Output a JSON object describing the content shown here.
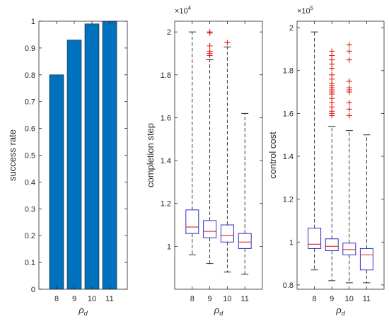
{
  "colors": {
    "bar": "#0072BD",
    "box": "#2D2DC8",
    "median": "#E0201B",
    "outlier": "#E0201B",
    "whisker": "#262626",
    "axis": "#262626"
  },
  "chart_data": [
    {
      "type": "bar",
      "categories": [
        "8",
        "9",
        "10",
        "11"
      ],
      "values": [
        0.8,
        0.93,
        0.99,
        1.0
      ],
      "xlabel": "ρ_d",
      "xlabel_main": "ρ",
      "xlabel_sub": "d",
      "ylabel": "success rate",
      "ylim": [
        0,
        1
      ],
      "yticks": [
        0,
        0.1,
        0.2,
        0.3,
        0.4,
        0.5,
        0.6,
        0.7,
        0.8,
        0.9,
        1
      ],
      "ytick_labels": [
        "0",
        "0.1",
        "0.2",
        "0.3",
        "0.4",
        "0.5",
        "0.6",
        "0.7",
        "0.8",
        "0.9",
        "1"
      ]
    },
    {
      "type": "box",
      "categories": [
        "8",
        "9",
        "10",
        "11"
      ],
      "xlabel": "ρ_d",
      "xlabel_main": "ρ",
      "xlabel_sub": "d",
      "ylabel": "completion step",
      "exponent_label": "×10",
      "exponent_power": "4",
      "ylim": [
        0.8,
        2.05
      ],
      "yticks": [
        1,
        1.2,
        1.4,
        1.6,
        1.8,
        2
      ],
      "ytick_labels": [
        "1",
        "1.2",
        "1.4",
        "1.6",
        "1.8",
        "2"
      ],
      "boxes": [
        {
          "whisker_low": 0.96,
          "q1": 1.06,
          "median": 1.09,
          "q3": 1.17,
          "whisker_high": 2.0,
          "outliers": []
        },
        {
          "whisker_low": 0.92,
          "q1": 1.04,
          "median": 1.07,
          "q3": 1.12,
          "whisker_high": 1.87,
          "outliers": [
            1.89,
            1.9,
            1.91,
            1.935,
            1.995,
            2.0
          ]
        },
        {
          "whisker_low": 0.88,
          "q1": 1.02,
          "median": 1.05,
          "q3": 1.1,
          "whisker_high": 1.93,
          "outliers": [
            1.95
          ]
        },
        {
          "whisker_low": 0.87,
          "q1": 0.99,
          "median": 1.02,
          "q3": 1.06,
          "whisker_high": 1.62,
          "outliers": []
        }
      ]
    },
    {
      "type": "box",
      "categories": [
        "8",
        "9",
        "10",
        "11"
      ],
      "xlabel": "ρ_d",
      "xlabel_main": "ρ",
      "xlabel_sub": "d",
      "ylabel": "control cost",
      "exponent_label": "×10",
      "exponent_power": "5",
      "ylim": [
        0.78,
        2.03
      ],
      "yticks": [
        0.8,
        1,
        1.2,
        1.4,
        1.6,
        1.8,
        2
      ],
      "ytick_labels": [
        "0.8",
        "1",
        "1.2",
        "1.4",
        "1.6",
        "1.8",
        "2"
      ],
      "boxes": [
        {
          "whisker_low": 0.87,
          "q1": 0.97,
          "median": 0.99,
          "q3": 1.065,
          "whisker_high": 1.98,
          "outliers": []
        },
        {
          "whisker_low": 0.82,
          "q1": 0.96,
          "median": 0.98,
          "q3": 1.015,
          "whisker_high": 1.54,
          "outliers": [
            1.59,
            1.6,
            1.61,
            1.63,
            1.65,
            1.67,
            1.69,
            1.7,
            1.71,
            1.72,
            1.73,
            1.74,
            1.76,
            1.78,
            1.81,
            1.83,
            1.85,
            1.87,
            1.89
          ]
        },
        {
          "whisker_low": 0.81,
          "q1": 0.94,
          "median": 0.965,
          "q3": 0.995,
          "whisker_high": 1.52,
          "outliers": [
            1.59,
            1.62,
            1.65,
            1.7,
            1.71,
            1.72,
            1.75,
            1.85,
            1.89,
            1.92
          ]
        },
        {
          "whisker_low": 0.81,
          "q1": 0.87,
          "median": 0.94,
          "q3": 0.97,
          "whisker_high": 1.5,
          "outliers": []
        }
      ]
    }
  ]
}
